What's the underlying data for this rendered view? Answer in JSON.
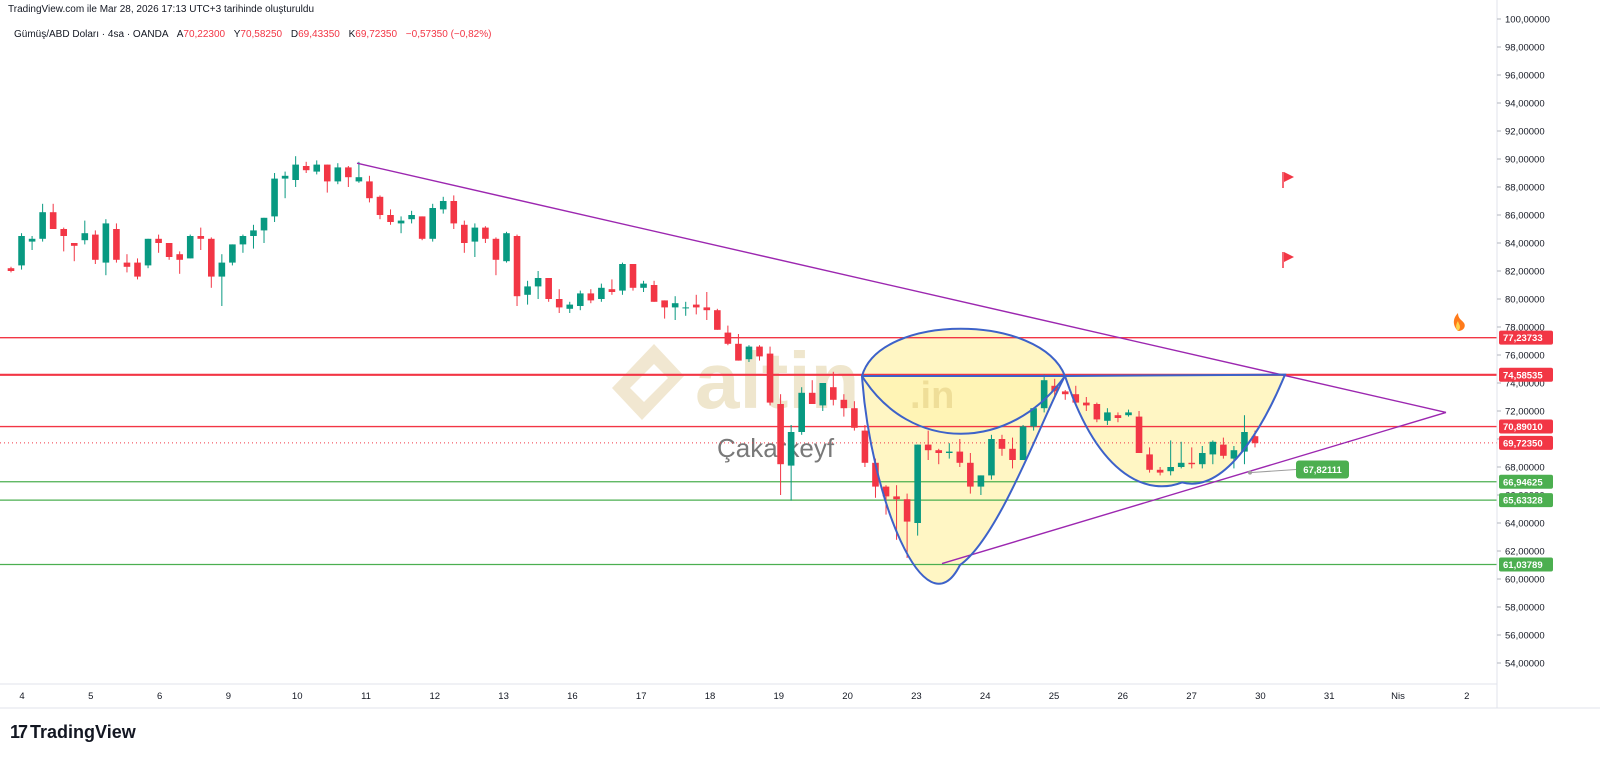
{
  "header": {
    "note": "TradingView.com ile Mar 28, 2026 17:13 UTC+3 tarihinde oluşturuldu"
  },
  "legend": {
    "symbol": "Gümüş/ABD Doları · 4sa · OANDA",
    "o_label": "A",
    "o_value": "70,22300",
    "h_label": "Y",
    "h_value": "70,58250",
    "l_label": "D",
    "l_value": "69,43350",
    "c_label": "K",
    "c_value": "69,72350",
    "change": "−0,57350 (−0,82%)"
  },
  "watermark": {
    "brand": "altin",
    "suffix": ".in",
    "author": "Çakarkeyf"
  },
  "footer": {
    "logo_text": "TradingView",
    "logo_mark": "17"
  },
  "colors": {
    "up": "#089981",
    "down": "#f23645",
    "trend": "#9c27b0",
    "pattern": "#3d62c9",
    "resistance": "#f23645",
    "support": "#4caf50",
    "fill": "#fff3b0"
  },
  "chart_data": {
    "type": "candlestick",
    "ylim": [
      52.5,
      100.5
    ],
    "y_ticks": [
      "100,00000",
      "98,00000",
      "96,00000",
      "94,00000",
      "92,00000",
      "90,00000",
      "88,00000",
      "86,00000",
      "84,00000",
      "82,00000",
      "80,00000",
      "78,00000",
      "76,00000",
      "74,00000",
      "72,00000",
      "70,00000",
      "68,00000",
      "66,00000",
      "64,00000",
      "62,00000",
      "60,00000",
      "58,00000",
      "56,00000",
      "54,00000"
    ],
    "x_ticks": [
      "4",
      "5",
      "6",
      "9",
      "10",
      "11",
      "12",
      "13",
      "16",
      "17",
      "18",
      "19",
      "20",
      "23",
      "24",
      "25",
      "26",
      "27",
      "30",
      "31",
      "Nis",
      "2"
    ],
    "price_labels": [
      {
        "value": 77.23733,
        "text": "77,23733",
        "kind": "resistance"
      },
      {
        "value": 74.58535,
        "text": "74,58535",
        "kind": "resistance"
      },
      {
        "value": 70.8901,
        "text": "70,89010",
        "kind": "resistance"
      },
      {
        "value": 69.7235,
        "text": "69,72350",
        "kind": "last"
      },
      {
        "value": 66.94625,
        "text": "66,94625",
        "kind": "support"
      },
      {
        "value": 65.63328,
        "text": "65,63328",
        "kind": "support"
      },
      {
        "value": 61.03789,
        "text": "61,03789",
        "kind": "support"
      }
    ],
    "callout": {
      "value": 67.82111,
      "text": "67,82111"
    },
    "candles": [
      [
        82.2,
        82.3,
        81.9,
        82.0
      ],
      [
        82.4,
        84.7,
        82.1,
        84.5
      ],
      [
        84.1,
        84.5,
        83.5,
        84.3
      ],
      [
        84.3,
        86.8,
        84.1,
        86.2
      ],
      [
        86.2,
        86.8,
        85.0,
        85.0
      ],
      [
        85.0,
        85.1,
        83.4,
        84.5
      ],
      [
        84.0,
        84.0,
        82.7,
        83.8
      ],
      [
        84.2,
        85.6,
        83.9,
        84.7
      ],
      [
        84.6,
        84.9,
        82.5,
        82.8
      ],
      [
        82.6,
        85.7,
        81.7,
        85.4
      ],
      [
        85.0,
        85.4,
        82.6,
        82.8
      ],
      [
        82.6,
        83.2,
        81.9,
        82.3
      ],
      [
        82.6,
        82.9,
        81.4,
        81.6
      ],
      [
        82.4,
        84.3,
        82.2,
        84.3
      ],
      [
        84.3,
        84.6,
        83.3,
        84.0
      ],
      [
        84.0,
        84.0,
        82.8,
        83.0
      ],
      [
        83.2,
        83.4,
        81.8,
        82.8
      ],
      [
        82.9,
        84.6,
        82.9,
        84.5
      ],
      [
        84.5,
        85.1,
        83.5,
        84.3
      ],
      [
        84.3,
        84.4,
        80.8,
        81.6
      ],
      [
        81.6,
        83.2,
        79.5,
        82.6
      ],
      [
        82.6,
        83.9,
        82.4,
        83.9
      ],
      [
        83.9,
        84.6,
        83.3,
        84.5
      ],
      [
        84.5,
        85.3,
        83.6,
        84.9
      ],
      [
        84.9,
        85.8,
        84.0,
        85.8
      ],
      [
        85.9,
        89.0,
        85.5,
        88.6
      ],
      [
        88.6,
        89.1,
        87.2,
        88.8
      ],
      [
        88.5,
        90.2,
        88.0,
        89.6
      ],
      [
        89.5,
        89.8,
        89.0,
        89.2
      ],
      [
        89.1,
        89.9,
        88.9,
        89.6
      ],
      [
        89.6,
        89.6,
        87.6,
        88.4
      ],
      [
        88.4,
        89.7,
        88.2,
        89.4
      ],
      [
        89.4,
        89.5,
        88.0,
        88.7
      ],
      [
        88.4,
        89.8,
        88.3,
        88.7
      ],
      [
        88.4,
        88.8,
        86.9,
        87.2
      ],
      [
        87.3,
        87.4,
        85.7,
        86.0
      ],
      [
        86.0,
        86.4,
        85.3,
        85.5
      ],
      [
        85.4,
        85.9,
        84.7,
        85.6
      ],
      [
        85.7,
        86.3,
        85.4,
        86.0
      ],
      [
        85.9,
        85.9,
        84.2,
        84.3
      ],
      [
        84.3,
        86.8,
        84.1,
        86.5
      ],
      [
        86.4,
        87.3,
        86.1,
        87.0
      ],
      [
        87.0,
        87.4,
        85.0,
        85.4
      ],
      [
        85.3,
        85.6,
        83.3,
        84.0
      ],
      [
        84.1,
        85.4,
        83.0,
        85.1
      ],
      [
        85.1,
        85.2,
        84.0,
        84.3
      ],
      [
        84.3,
        84.4,
        81.7,
        82.8
      ],
      [
        82.7,
        84.8,
        82.6,
        84.7
      ],
      [
        84.5,
        84.6,
        79.5,
        80.2
      ],
      [
        80.3,
        81.3,
        79.6,
        80.9
      ],
      [
        80.9,
        82.0,
        80.0,
        81.5
      ],
      [
        81.5,
        81.5,
        79.8,
        80.0
      ],
      [
        80.0,
        80.7,
        79.0,
        79.4
      ],
      [
        79.3,
        79.8,
        79.0,
        79.6
      ],
      [
        79.5,
        80.6,
        79.2,
        80.4
      ],
      [
        80.4,
        80.7,
        79.7,
        79.9
      ],
      [
        80.0,
        81.1,
        79.8,
        80.8
      ],
      [
        80.7,
        81.4,
        80.3,
        80.5
      ],
      [
        80.6,
        82.6,
        80.3,
        82.5
      ],
      [
        82.5,
        82.5,
        80.6,
        80.8
      ],
      [
        80.8,
        81.3,
        80.5,
        81.1
      ],
      [
        81.0,
        81.3,
        79.8,
        79.8
      ],
      [
        79.9,
        79.9,
        78.6,
        79.4
      ],
      [
        79.4,
        80.2,
        78.5,
        79.7
      ],
      [
        79.4,
        79.8,
        78.8,
        79.4
      ],
      [
        79.6,
        80.3,
        78.9,
        79.4
      ],
      [
        79.4,
        80.5,
        78.5,
        79.2
      ],
      [
        79.2,
        79.3,
        77.8,
        77.8
      ],
      [
        77.6,
        78.1,
        76.7,
        76.8
      ],
      [
        76.8,
        77.5,
        75.6,
        75.6
      ],
      [
        75.7,
        76.7,
        75.5,
        76.6
      ],
      [
        76.6,
        76.7,
        75.6,
        75.9
      ],
      [
        76.1,
        76.6,
        72.4,
        72.6
      ],
      [
        72.5,
        73.2,
        66.0,
        68.2
      ],
      [
        68.1,
        71.0,
        65.6,
        70.5
      ],
      [
        70.5,
        73.7,
        70.3,
        73.3
      ],
      [
        73.3,
        74.2,
        72.5,
        72.5
      ],
      [
        72.4,
        74.0,
        72.0,
        74.0
      ],
      [
        73.7,
        74.8,
        72.4,
        72.8
      ],
      [
        72.8,
        73.2,
        71.6,
        72.2
      ],
      [
        72.2,
        72.7,
        70.6,
        70.8
      ],
      [
        70.6,
        71.0,
        68.0,
        68.3
      ],
      [
        68.3,
        68.6,
        65.8,
        66.6
      ],
      [
        66.6,
        66.7,
        64.6,
        65.9
      ],
      [
        65.9,
        66.7,
        62.8,
        65.7
      ],
      [
        65.7,
        66.1,
        61.5,
        64.1
      ],
      [
        64.0,
        69.6,
        63.1,
        69.6
      ],
      [
        69.6,
        70.6,
        68.5,
        69.2
      ],
      [
        69.2,
        69.3,
        68.2,
        69.0
      ],
      [
        69.0,
        69.7,
        68.6,
        69.1
      ],
      [
        69.1,
        70.0,
        68.0,
        68.3
      ],
      [
        68.3,
        69.0,
        66.1,
        66.6
      ],
      [
        66.6,
        67.4,
        66.0,
        67.4
      ],
      [
        67.4,
        70.3,
        67.1,
        70.0
      ],
      [
        70.0,
        70.3,
        68.8,
        69.3
      ],
      [
        69.3,
        70.1,
        67.9,
        68.5
      ],
      [
        68.5,
        71.0,
        68.5,
        70.9
      ],
      [
        70.9,
        72.2,
        70.6,
        72.2
      ],
      [
        72.2,
        74.6,
        71.9,
        74.2
      ],
      [
        73.8,
        74.3,
        73.1,
        73.4
      ],
      [
        73.4,
        73.5,
        72.8,
        73.2
      ],
      [
        73.2,
        73.8,
        72.5,
        72.6
      ],
      [
        72.6,
        73.0,
        72.0,
        72.4
      ],
      [
        72.5,
        72.6,
        71.2,
        71.4
      ],
      [
        71.3,
        72.2,
        71.0,
        71.9
      ],
      [
        71.7,
        71.9,
        71.2,
        71.5
      ],
      [
        71.7,
        72.1,
        71.6,
        71.9
      ],
      [
        71.6,
        72.0,
        69.0,
        69.0
      ],
      [
        68.9,
        69.4,
        67.6,
        67.8
      ],
      [
        67.8,
        68.0,
        67.4,
        67.6
      ],
      [
        67.7,
        69.9,
        67.4,
        68.0
      ],
      [
        68.0,
        69.8,
        67.9,
        68.3
      ],
      [
        68.3,
        69.4,
        67.9,
        68.2
      ],
      [
        68.2,
        69.5,
        67.9,
        69.0
      ],
      [
        68.9,
        69.9,
        68.2,
        69.8
      ],
      [
        69.6,
        70.1,
        68.6,
        68.8
      ],
      [
        68.6,
        69.5,
        67.9,
        69.2
      ],
      [
        69.1,
        71.7,
        68.2,
        70.5
      ],
      [
        70.2,
        70.6,
        69.4,
        69.7
      ]
    ]
  }
}
